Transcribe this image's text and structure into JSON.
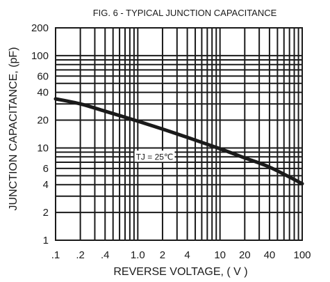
{
  "chart_data": {
    "type": "line",
    "title": "FIG. 6 - TYPICAL JUNCTION CAPACITANCE",
    "xlabel": "REVERSE VOLTAGE, ( V )",
    "ylabel": "JUNCTION CAPACITANCE, (pF)",
    "x_scale": "log",
    "y_scale": "log",
    "xlim": [
      0.1,
      100
    ],
    "ylim": [
      1,
      200
    ],
    "grid": true,
    "x_ticks": [
      {
        "value": 0.1,
        "label": ".1"
      },
      {
        "value": 0.2,
        "label": ".2"
      },
      {
        "value": 0.4,
        "label": ".4"
      },
      {
        "value": 1,
        "label": "1.0"
      },
      {
        "value": 2,
        "label": "2"
      },
      {
        "value": 4,
        "label": "4"
      },
      {
        "value": 10,
        "label": "10"
      },
      {
        "value": 20,
        "label": "20"
      },
      {
        "value": 40,
        "label": "40"
      },
      {
        "value": 100,
        "label": "100"
      }
    ],
    "y_ticks": [
      {
        "value": 1,
        "label": "1"
      },
      {
        "value": 2,
        "label": "2"
      },
      {
        "value": 4,
        "label": "4"
      },
      {
        "value": 6,
        "label": "6"
      },
      {
        "value": 10,
        "label": "10"
      },
      {
        "value": 20,
        "label": "20"
      },
      {
        "value": 40,
        "label": "40"
      },
      {
        "value": 60,
        "label": "60"
      },
      {
        "value": 100,
        "label": "100"
      },
      {
        "value": 200,
        "label": "200"
      }
    ],
    "x_grid": [
      0.1,
      0.2,
      0.3,
      0.4,
      0.5,
      0.6,
      0.7,
      0.8,
      0.9,
      1,
      2,
      3,
      4,
      5,
      6,
      7,
      8,
      9,
      10,
      20,
      30,
      40,
      50,
      60,
      70,
      80,
      90,
      100
    ],
    "y_grid": [
      1,
      2,
      3,
      4,
      5,
      6,
      7,
      8,
      9,
      10,
      20,
      30,
      40,
      50,
      60,
      70,
      80,
      90,
      100,
      200
    ],
    "series": [
      {
        "x": [
          0.1,
          0.2,
          0.4,
          1,
          2,
          4,
          10,
          20,
          40,
          100
        ],
        "y": [
          34,
          30,
          25,
          19.5,
          16,
          13,
          9.8,
          7.8,
          6.2,
          4.1
        ]
      }
    ],
    "annotations": [
      {
        "text": "TJ = 25℃",
        "x": 1.6,
        "y": 8
      }
    ]
  }
}
